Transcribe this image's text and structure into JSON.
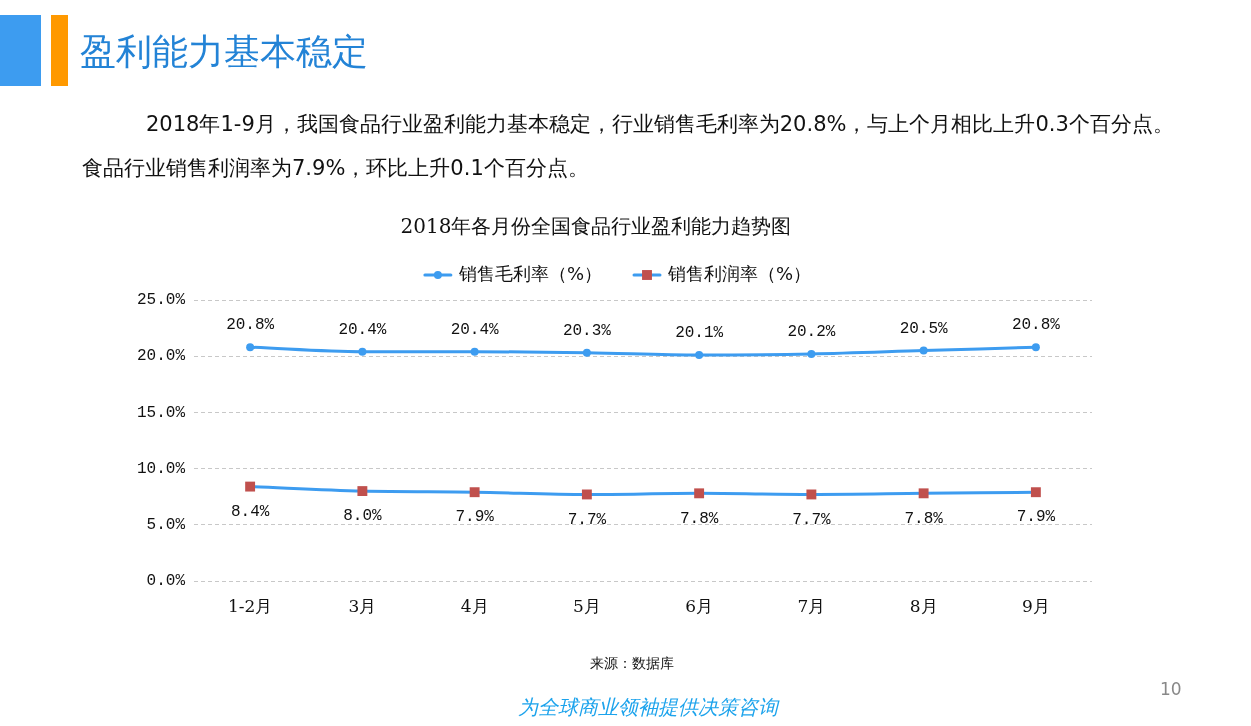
{
  "chart_data": {
    "type": "line",
    "title": "2018年各月份全国食品行业盈利能力趋势图",
    "categories": [
      "1-2月",
      "3月",
      "4月",
      "5月",
      "6月",
      "7月",
      "8月",
      "9月"
    ],
    "series": [
      {
        "name": "销售毛利率（%）",
        "color": "#3d9cf0",
        "marker": "circle",
        "values": [
          20.8,
          20.4,
          20.4,
          20.3,
          20.1,
          20.2,
          20.5,
          20.8
        ],
        "value_labels": [
          "20.8%",
          "20.4%",
          "20.4%",
          "20.3%",
          "20.1%",
          "20.2%",
          "20.5%",
          "20.8%"
        ]
      },
      {
        "name": "销售利润率（%）",
        "color": "#3d9cf0",
        "colors": [
          "#c0504d",
          "#c0504d",
          "#c0504d",
          "#c0504d",
          "#c0504d",
          "#c0504d",
          "#c0504d",
          "#c0504d"
        ],
        "marker": "square",
        "values": [
          8.4,
          8.0,
          7.9,
          7.7,
          7.8,
          7.7,
          7.8,
          7.9
        ],
        "value_labels": [
          "8.4%",
          "8.0%",
          "7.9%",
          "7.7%",
          "7.8%",
          "7.7%",
          "7.8%",
          "7.9%"
        ]
      }
    ],
    "ylim": [
      0,
      25
    ],
    "yticks": [
      {
        "value": 0,
        "label": "0.0%"
      },
      {
        "value": 5,
        "label": "5.0%"
      },
      {
        "value": 10,
        "label": "10.0%"
      },
      {
        "value": 15,
        "label": "15.0%"
      },
      {
        "value": 20,
        "label": "20.0%"
      },
      {
        "value": 25,
        "label": "25.0%"
      }
    ],
    "grid": "y",
    "legend": "top",
    "annotations": [
      "盈利能力基本稳定",
      "2018年1-9月，我国食品行业盈利能力基本稳定，行业销售毛利率为20.8%，与上个月相比上升0.3个百分点。",
      "食品行业销售利润率为7.9%，环比上升0.1个百分点。",
      "来源：数据库",
      "为全球商业领袖提供决策咨询",
      "10"
    ]
  }
}
